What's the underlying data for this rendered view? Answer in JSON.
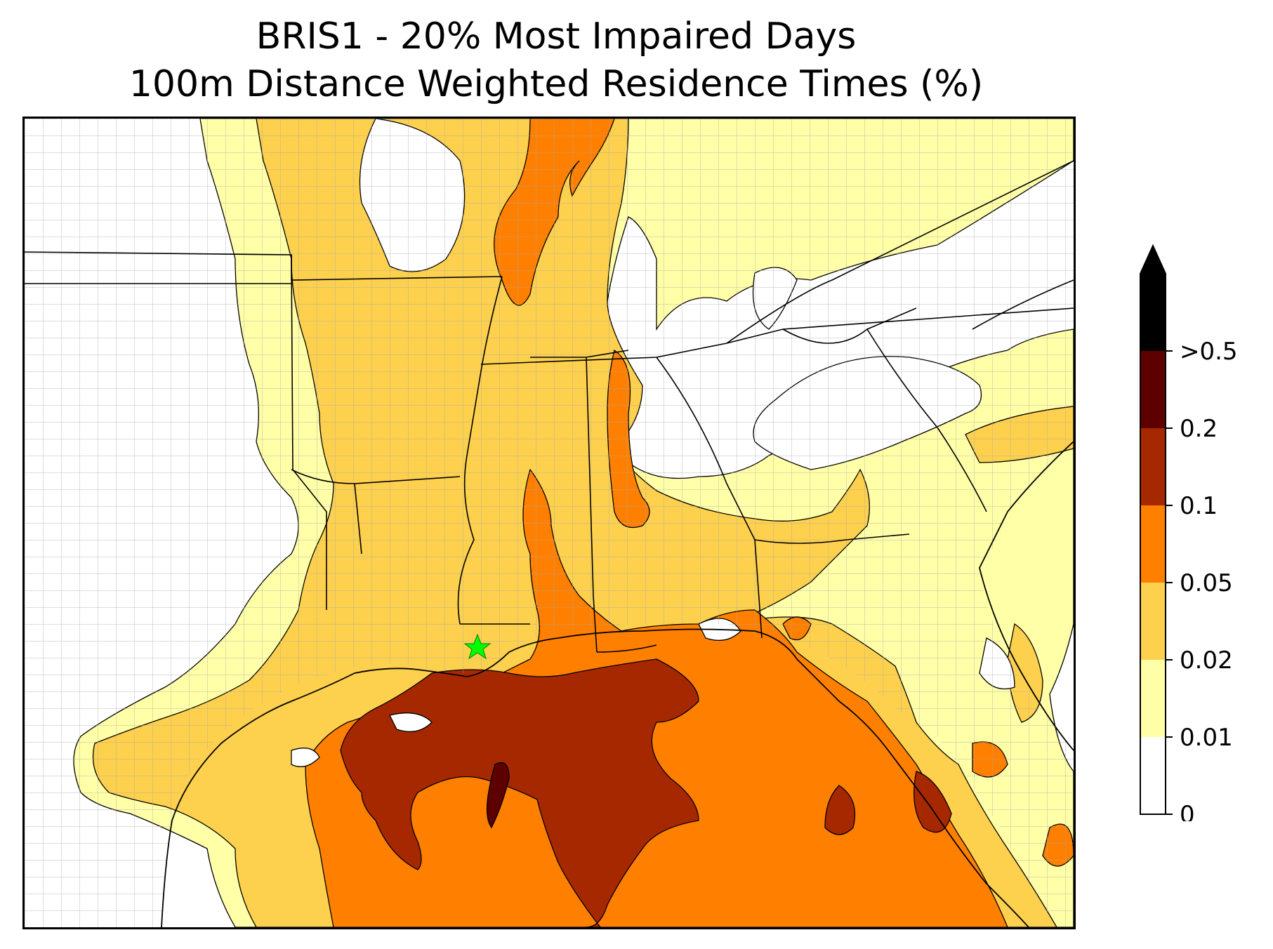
{
  "title": {
    "line1": "BRIS1 - 20% Most Impaired Days",
    "line2": "100m Distance Weighted Residence Times (%)"
  },
  "colorbar": {
    "extend": "max",
    "levels": [
      {
        "label": "0",
        "color": "#ffffff"
      },
      {
        "label": "0.01",
        "color": "#ffffa8"
      },
      {
        "label": "0.02",
        "color": "#fdd04e"
      },
      {
        "label": "0.05",
        "color": "#ff8000"
      },
      {
        "label": "0.1",
        "color": "#a62800"
      },
      {
        "label": "0.2",
        "color": "#5c0000"
      },
      {
        "label": ">0.5",
        "color": "#000000"
      }
    ]
  },
  "receptor": {
    "name": "BRIS1",
    "marker_color": "#00ff00"
  },
  "colors": {
    "state_lines": "#000000",
    "county_lines": "#a8a8a8",
    "contour_lines": "#000000"
  }
}
